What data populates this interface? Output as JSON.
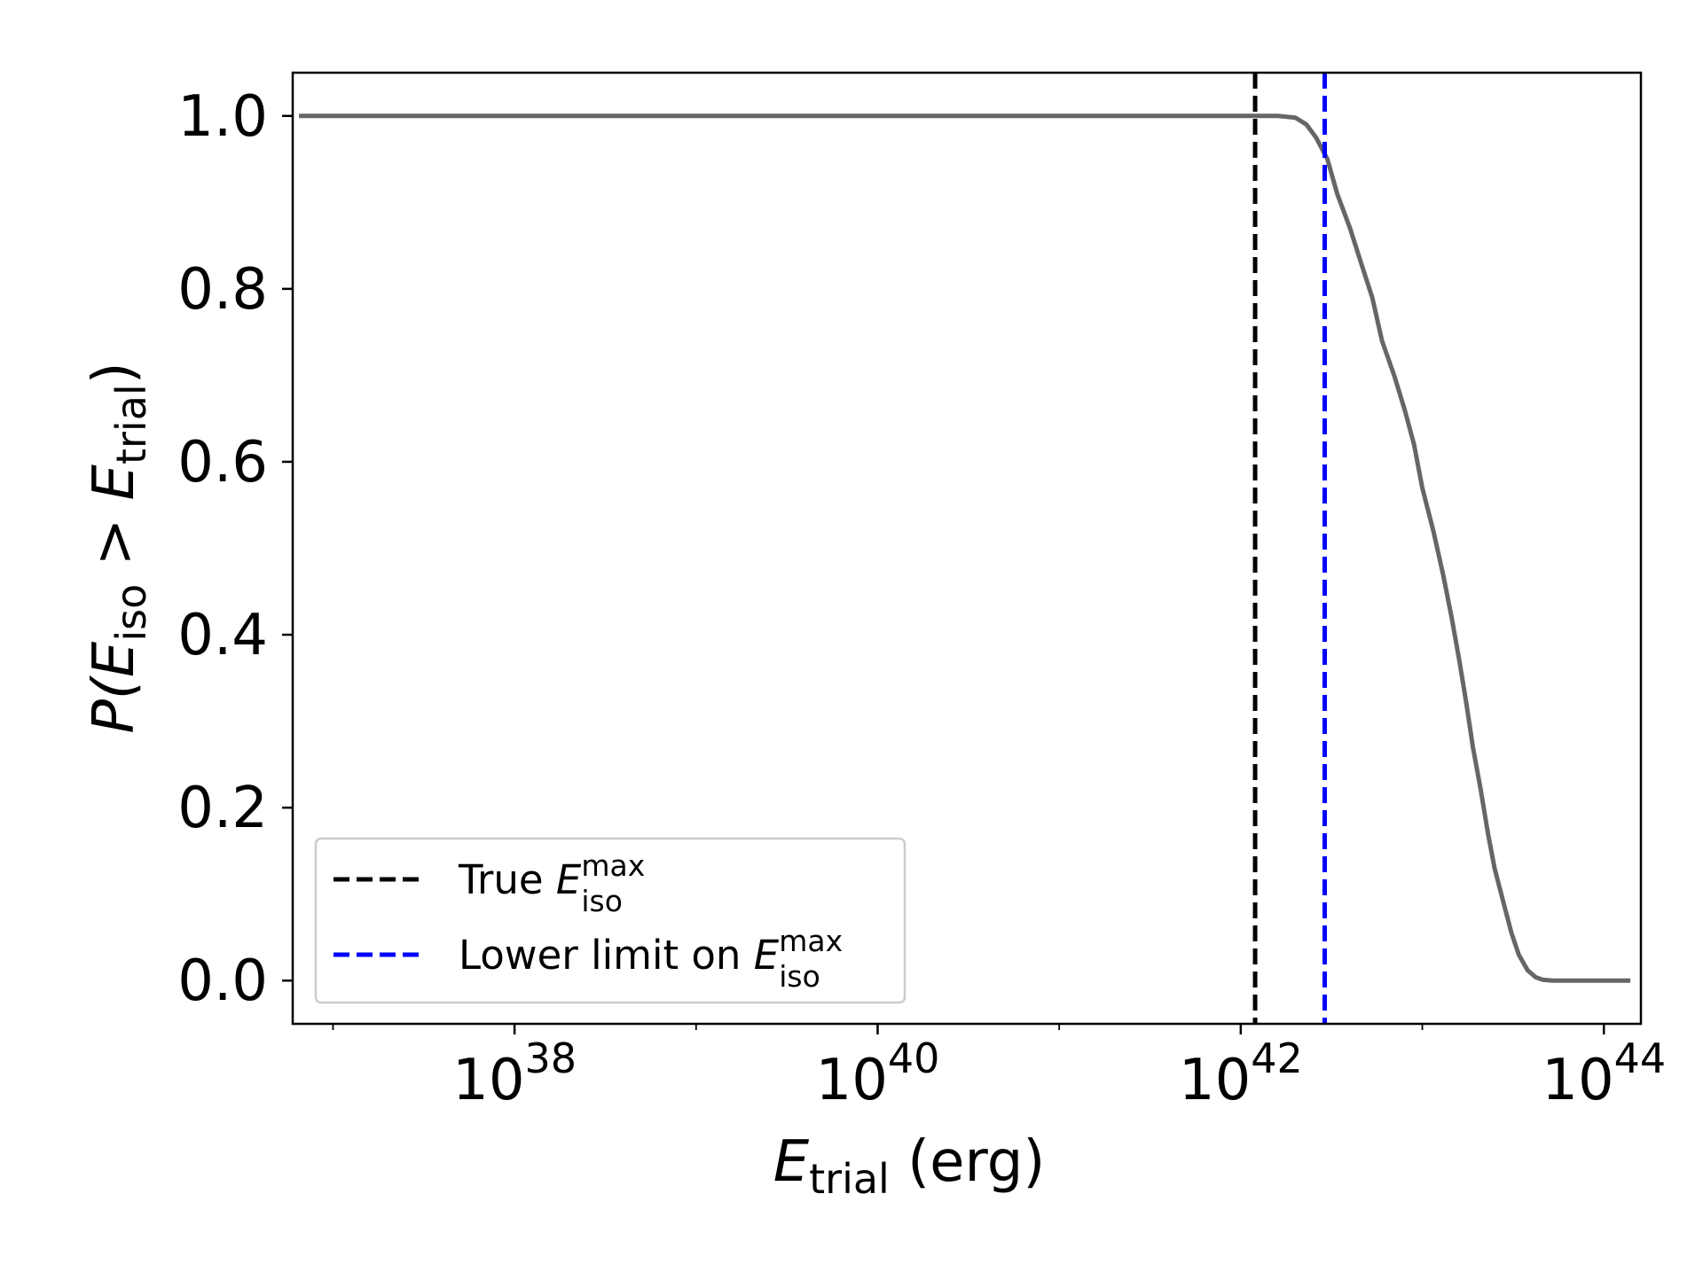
{
  "chart_data": {
    "type": "line",
    "xscale": "log",
    "xlim": [
      6e+36,
      1.6e+44
    ],
    "ylim": [
      -0.05,
      1.05
    ],
    "grid": false,
    "legend_position": "lower-left",
    "xlabel": {
      "main": "E",
      "sub": "trial",
      "unit": " (erg)"
    },
    "ylabel": {
      "prefix": "P(",
      "e1": "E",
      "sub1": "iso",
      "op": " > ",
      "e2": "E",
      "sub2": "trial",
      "suffix": ")"
    },
    "x_ticks": [
      {
        "value": 1e+38,
        "base": "10",
        "exp": "38"
      },
      {
        "value": 1e+40,
        "base": "10",
        "exp": "40"
      },
      {
        "value": 1e+42,
        "base": "10",
        "exp": "42"
      },
      {
        "value": 1e+44,
        "base": "10",
        "exp": "44"
      }
    ],
    "y_ticks": [
      {
        "value": 0.0,
        "label": "0.0"
      },
      {
        "value": 0.2,
        "label": "0.2"
      },
      {
        "value": 0.4,
        "label": "0.4"
      },
      {
        "value": 0.6,
        "label": "0.6"
      },
      {
        "value": 0.8,
        "label": "0.8"
      },
      {
        "value": 1.0,
        "label": "1.0"
      }
    ],
    "series": [
      {
        "color": "#666666",
        "style": "solid",
        "x": [
          6.5e+36,
          1e+38,
          1e+40,
          1e+42,
          1.6e+42,
          2e+42,
          2.3e+42,
          2.6e+42,
          3e+42,
          3.4e+42,
          4e+42,
          4.6e+42,
          5.3e+42,
          6e+42,
          7e+42,
          8e+42,
          9e+42,
          1e+43,
          1.15e+43,
          1.3e+43,
          1.45e+43,
          1.6e+43,
          1.75e+43,
          1.9e+43,
          2.1e+43,
          2.3e+43,
          2.5e+43,
          2.8e+43,
          3.1e+43,
          3.4e+43,
          3.8e+43,
          4.2e+43,
          4.6e+43,
          5.2e+43,
          6e+43,
          8e+43,
          1e+44,
          1.4e+44
        ],
        "y": [
          1.0,
          1.0,
          1.0,
          1.0,
          1.0,
          0.998,
          0.99,
          0.975,
          0.95,
          0.91,
          0.87,
          0.83,
          0.79,
          0.74,
          0.7,
          0.66,
          0.62,
          0.57,
          0.52,
          0.47,
          0.42,
          0.37,
          0.32,
          0.27,
          0.22,
          0.17,
          0.13,
          0.09,
          0.055,
          0.03,
          0.012,
          0.004,
          0.001,
          0.0,
          0.0,
          0.0,
          0.0,
          0.0
        ]
      }
    ],
    "vlines": [
      {
        "x": 1.2e+42,
        "color": "#000000",
        "style": "dashed",
        "legend": {
          "text": "True ",
          "e": "E",
          "sub": "iso",
          "sup": "max"
        }
      },
      {
        "x": 2.9e+42,
        "color": "#0000ff",
        "style": "dashed",
        "legend": {
          "text": "Lower limit on ",
          "e": "E",
          "sub": "iso",
          "sup": "max"
        }
      }
    ]
  }
}
